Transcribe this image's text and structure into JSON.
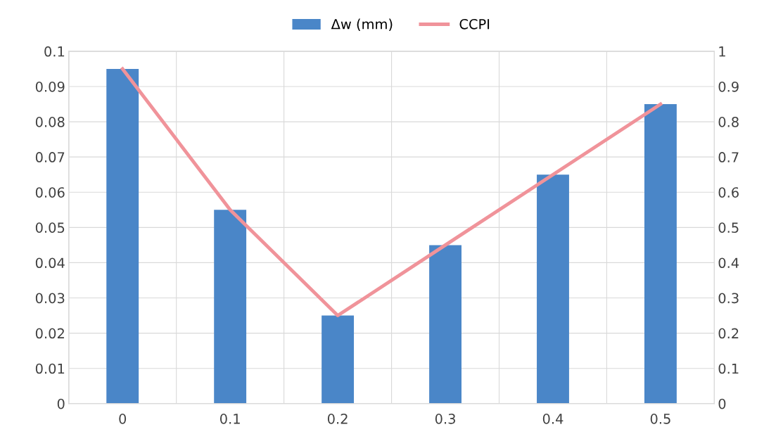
{
  "chart_data": {
    "type": "bar",
    "categories": [
      "0",
      "0.1",
      "0.2",
      "0.3",
      "0.4",
      "0.5"
    ],
    "series": [
      {
        "name": "Δw (mm)",
        "color": "#4a86c8",
        "values": [
          0.095,
          0.055,
          0.025,
          0.045,
          0.065,
          0.085
        ]
      },
      {
        "name": "CCPI",
        "type": "line",
        "axis": "y2",
        "color": "#f0939a",
        "values": [
          0.95,
          0.55,
          0.25,
          0.45,
          0.65,
          0.85
        ]
      }
    ],
    "ylim": [
      0,
      0.1
    ],
    "yticks": [
      0,
      0.01,
      0.02,
      0.03,
      0.04,
      0.05,
      0.06,
      0.07,
      0.08,
      0.09,
      0.1
    ],
    "y2lim": [
      0,
      1
    ],
    "y2ticks": [
      0,
      0.1,
      0.2,
      0.3,
      0.4,
      0.5,
      0.6,
      0.7,
      0.8,
      0.9,
      1
    ],
    "grid": true,
    "legend": "top",
    "marker": "none",
    "line_style": "solid"
  }
}
